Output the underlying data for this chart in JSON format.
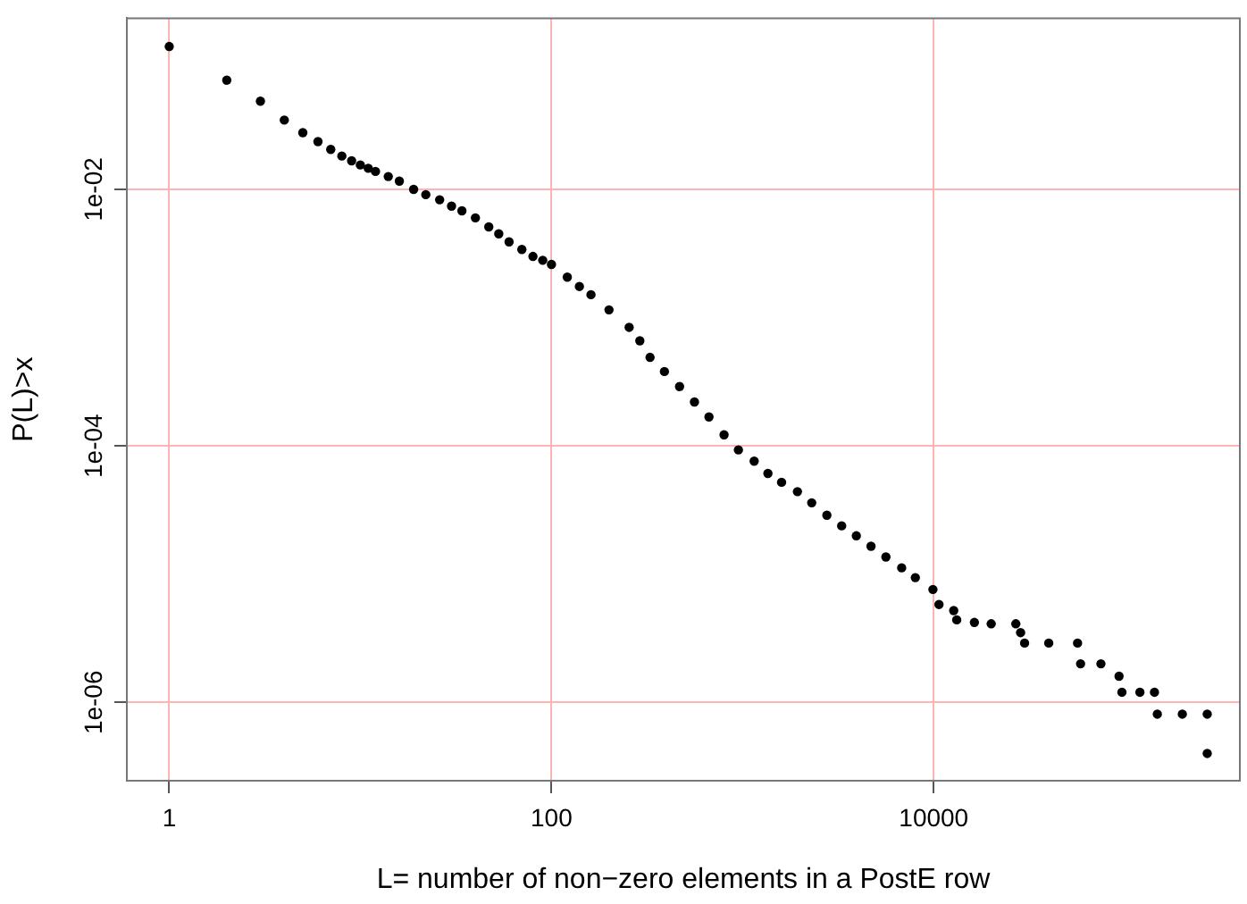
{
  "chart_data": {
    "type": "scatter",
    "xlabel": "L= number of non−zero elements in a PostE row",
    "ylabel": "P(L)>x",
    "log": "xy",
    "grid": true,
    "marker": "circle",
    "xlim": [
      0.6,
      400000
    ],
    "ylim": [
      2.45e-07,
      0.216
    ],
    "xticks": [
      1,
      100,
      10000
    ],
    "yticks": [
      {
        "value": 0.01,
        "label": "1e-02"
      },
      {
        "value": 0.0001,
        "label": "1e-04"
      },
      {
        "value": 1e-06,
        "label": "1e-06"
      }
    ],
    "series": [
      {
        "color": "#000000",
        "x": [
          1,
          2,
          3,
          4,
          5,
          6,
          7,
          8,
          9,
          10,
          11,
          12,
          14,
          16,
          19,
          22,
          26,
          30,
          34,
          40,
          47,
          53,
          60,
          70,
          80,
          90,
          100,
          121,
          140,
          161,
          200,
          255,
          290,
          328,
          390,
          468,
          560,
          667,
          800,
          951,
          1150,
          1357,
          1600,
          1937,
          2300,
          2761,
          3300,
          3938,
          4700,
          5623,
          6800,
          8017,
          9910,
          10660,
          12730,
          13200,
          16330,
          20000,
          26900,
          28500,
          29900,
          40000,
          56600,
          58700,
          75000,
          93300,
          96600,
          120000,
          143000,
          148000,
          200000,
          270000,
          270000
        ],
        "values": [
          0.13,
          0.071,
          0.0487,
          0.0347,
          0.0277,
          0.0236,
          0.0205,
          0.0182,
          0.0167,
          0.0155,
          0.0146,
          0.0138,
          0.0126,
          0.0116,
          0.01,
          0.0091,
          0.0083,
          0.0074,
          0.0068,
          0.006,
          0.0051,
          0.0045,
          0.0039,
          0.0034,
          0.003,
          0.0028,
          0.0026,
          0.00207,
          0.00175,
          0.00151,
          0.00115,
          0.00084,
          0.00066,
          0.00049,
          0.00038,
          0.00029,
          0.00022,
          0.000168,
          0.000122,
          9.3e-05,
          7.6e-05,
          6.1e-05,
          5.2e-05,
          4.4e-05,
          3.6e-05,
          2.88e-05,
          2.38e-05,
          1.99e-05,
          1.65e-05,
          1.36e-05,
          1.12e-05,
          9.4e-06,
          7.6e-06,
          5.8e-06,
          5.2e-06,
          4.4e-06,
          4.2e-06,
          4.1e-06,
          4.1e-06,
          3.5e-06,
          2.9e-06,
          2.9e-06,
          2.9e-06,
          2e-06,
          2e-06,
          1.6e-06,
          1.2e-06,
          1.2e-06,
          1.2e-06,
          8.1e-07,
          8.1e-07,
          8.1e-07,
          4e-07
        ]
      }
    ]
  }
}
